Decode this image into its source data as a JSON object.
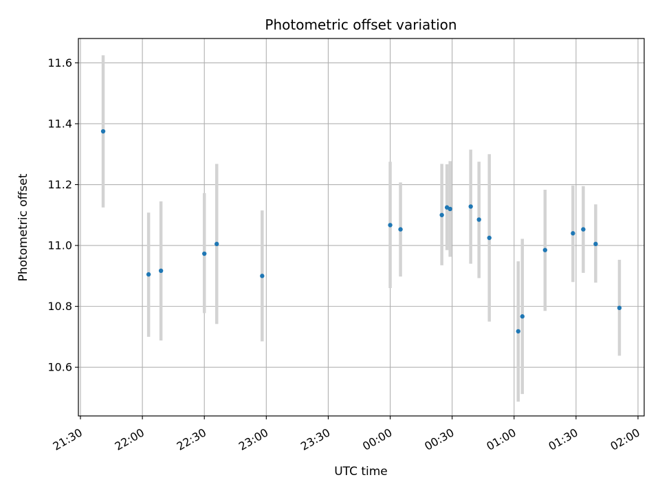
{
  "chart_data": {
    "type": "scatter",
    "title": "Photometric offset variation",
    "xlabel": "UTC time",
    "ylabel": "Photometric offset",
    "x_axis_type": "time",
    "x_range": [
      "2023-01-01T21:29:00",
      "2023-01-02T02:03:00"
    ],
    "ylim": [
      10.44,
      11.68
    ],
    "x_ticks": [
      {
        "t": "2023-01-01T21:30:00",
        "label": "21:30"
      },
      {
        "t": "2023-01-01T22:00:00",
        "label": "22:00"
      },
      {
        "t": "2023-01-01T22:30:00",
        "label": "22:30"
      },
      {
        "t": "2023-01-01T23:00:00",
        "label": "23:00"
      },
      {
        "t": "2023-01-01T23:30:00",
        "label": "23:30"
      },
      {
        "t": "2023-01-02T00:00:00",
        "label": "00:00"
      },
      {
        "t": "2023-01-02T00:30:00",
        "label": "00:30"
      },
      {
        "t": "2023-01-02T01:00:00",
        "label": "01:00"
      },
      {
        "t": "2023-01-02T01:30:00",
        "label": "01:30"
      },
      {
        "t": "2023-01-02T02:00:00",
        "label": "02:00"
      }
    ],
    "y_ticks": [
      {
        "v": 10.6,
        "label": "10.6"
      },
      {
        "v": 10.8,
        "label": "10.8"
      },
      {
        "v": 11.0,
        "label": "11.0"
      },
      {
        "v": 11.2,
        "label": "11.2"
      },
      {
        "v": 11.4,
        "label": "11.4"
      },
      {
        "v": 11.6,
        "label": "11.6"
      }
    ],
    "grid": true,
    "points": [
      {
        "t": "2023-01-01T21:41:00",
        "y": 11.375,
        "ylow": 11.125,
        "yhigh": 11.625
      },
      {
        "t": "2023-01-01T22:03:00",
        "y": 10.905,
        "ylow": 10.7,
        "yhigh": 11.108
      },
      {
        "t": "2023-01-01T22:09:00",
        "y": 10.917,
        "ylow": 10.688,
        "yhigh": 11.145
      },
      {
        "t": "2023-01-01T22:30:00",
        "y": 10.973,
        "ylow": 10.778,
        "yhigh": 11.172
      },
      {
        "t": "2023-01-01T22:36:00",
        "y": 11.005,
        "ylow": 10.742,
        "yhigh": 11.268
      },
      {
        "t": "2023-01-01T22:58:00",
        "y": 10.9,
        "ylow": 10.685,
        "yhigh": 11.115
      },
      {
        "t": "2023-01-02T00:00:00",
        "y": 11.067,
        "ylow": 10.86,
        "yhigh": 11.275
      },
      {
        "t": "2023-01-02T00:05:00",
        "y": 11.053,
        "ylow": 10.898,
        "yhigh": 11.207
      },
      {
        "t": "2023-01-02T00:25:00",
        "y": 11.1,
        "ylow": 10.935,
        "yhigh": 11.268
      },
      {
        "t": "2023-01-02T00:27:30",
        "y": 11.125,
        "ylow": 10.985,
        "yhigh": 11.267
      },
      {
        "t": "2023-01-02T00:29:00",
        "y": 11.12,
        "ylow": 10.963,
        "yhigh": 11.277
      },
      {
        "t": "2023-01-02T00:39:00",
        "y": 11.128,
        "ylow": 10.94,
        "yhigh": 11.315
      },
      {
        "t": "2023-01-02T00:43:00",
        "y": 11.085,
        "ylow": 10.893,
        "yhigh": 11.275
      },
      {
        "t": "2023-01-02T00:48:00",
        "y": 11.025,
        "ylow": 10.75,
        "yhigh": 11.3
      },
      {
        "t": "2023-01-02T01:02:00",
        "y": 10.718,
        "ylow": 10.487,
        "yhigh": 10.948
      },
      {
        "t": "2023-01-02T01:04:00",
        "y": 10.767,
        "ylow": 10.512,
        "yhigh": 11.022
      },
      {
        "t": "2023-01-02T01:15:00",
        "y": 10.985,
        "ylow": 10.785,
        "yhigh": 11.183
      },
      {
        "t": "2023-01-02T01:28:30",
        "y": 11.04,
        "ylow": 10.88,
        "yhigh": 11.197
      },
      {
        "t": "2023-01-02T01:33:30",
        "y": 11.053,
        "ylow": 10.91,
        "yhigh": 11.195
      },
      {
        "t": "2023-01-02T01:39:30",
        "y": 11.005,
        "ylow": 10.878,
        "yhigh": 11.135
      },
      {
        "t": "2023-01-02T01:51:00",
        "y": 10.795,
        "ylow": 10.638,
        "yhigh": 10.953
      }
    ],
    "colors": {
      "point": "#1f77b4",
      "errorbar": "#d3d3d3",
      "grid": "#b0b0b0",
      "axis": "#000000"
    }
  }
}
